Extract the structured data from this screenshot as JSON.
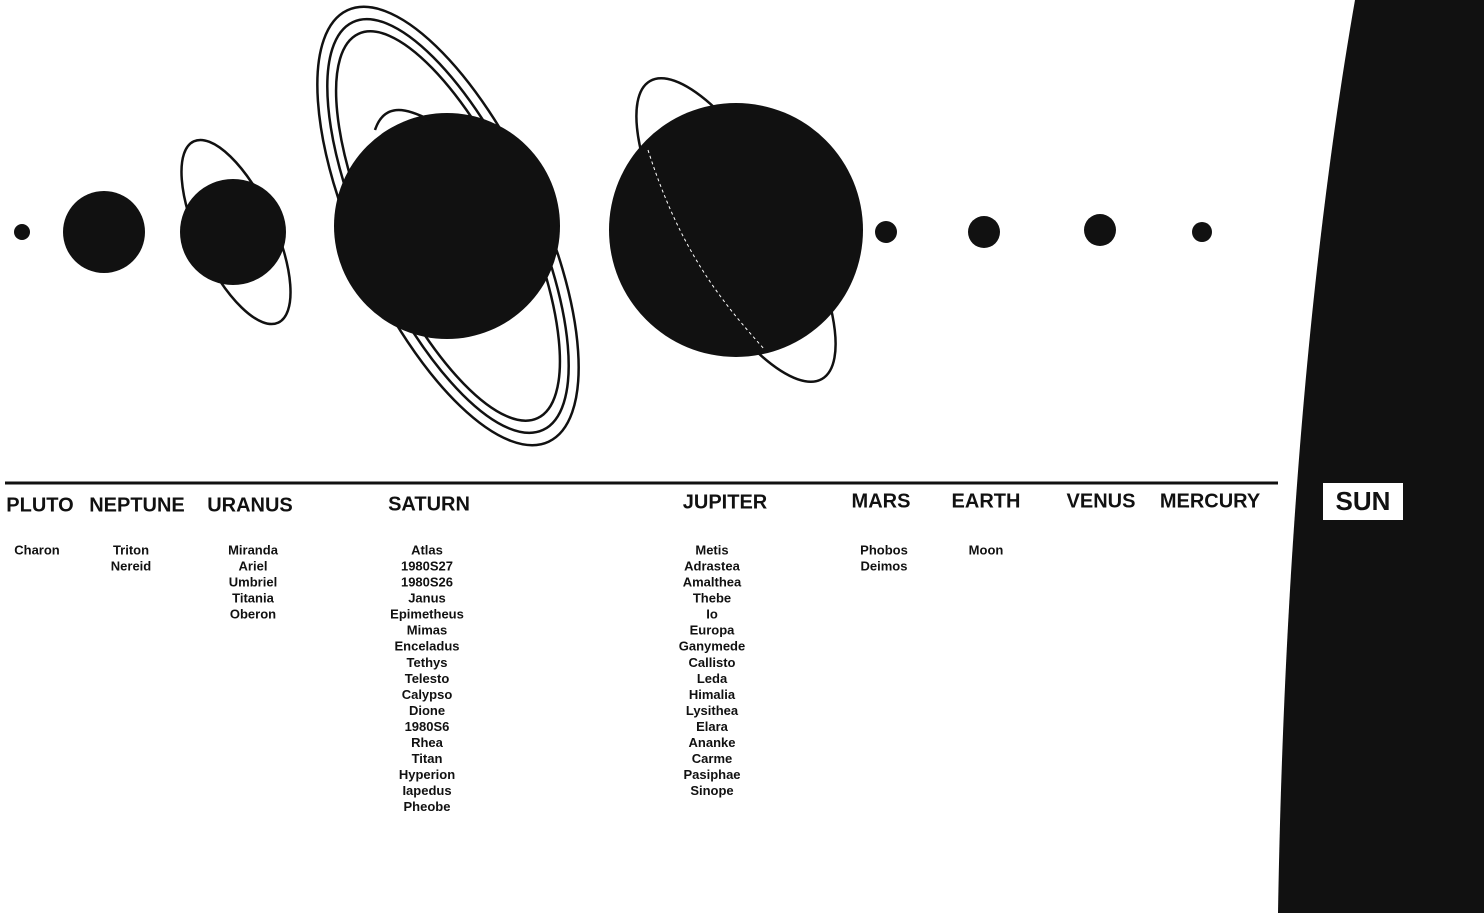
{
  "planets": [
    {
      "name": "PLUTO",
      "moons": [
        "Charon"
      ]
    },
    {
      "name": "NEPTUNE",
      "moons": [
        "Triton",
        "Nereid"
      ]
    },
    {
      "name": "URANUS",
      "moons": [
        "Miranda",
        "Ariel",
        "Umbriel",
        "Titania",
        "Oberon"
      ]
    },
    {
      "name": "SATURN",
      "moons": [
        "Atlas",
        "1980S27",
        "1980S26",
        "Janus",
        "Epimetheus",
        "Mimas",
        "Enceladus",
        "Tethys",
        "Telesto",
        "Calypso",
        "Dione",
        "1980S6",
        "Rhea",
        "Titan",
        "Hyperion",
        "Iapedus",
        "Pheobe"
      ]
    },
    {
      "name": "JUPITER",
      "moons": [
        "Metis",
        "Adrastea",
        "Amalthea",
        "Thebe",
        "Io",
        "Europa",
        "Ganymede",
        "Callisto",
        "Leda",
        "Himalia",
        "Lysithea",
        "Elara",
        "Ananke",
        "Carme",
        "Pasiphae",
        "Sinope"
      ]
    },
    {
      "name": "MARS",
      "moons": [
        "Phobos",
        "Deimos"
      ]
    },
    {
      "name": "EARTH",
      "moons": [
        "Moon"
      ]
    },
    {
      "name": "VENUS",
      "moons": []
    },
    {
      "name": "MERCURY",
      "moons": []
    }
  ],
  "sun": "SUN"
}
